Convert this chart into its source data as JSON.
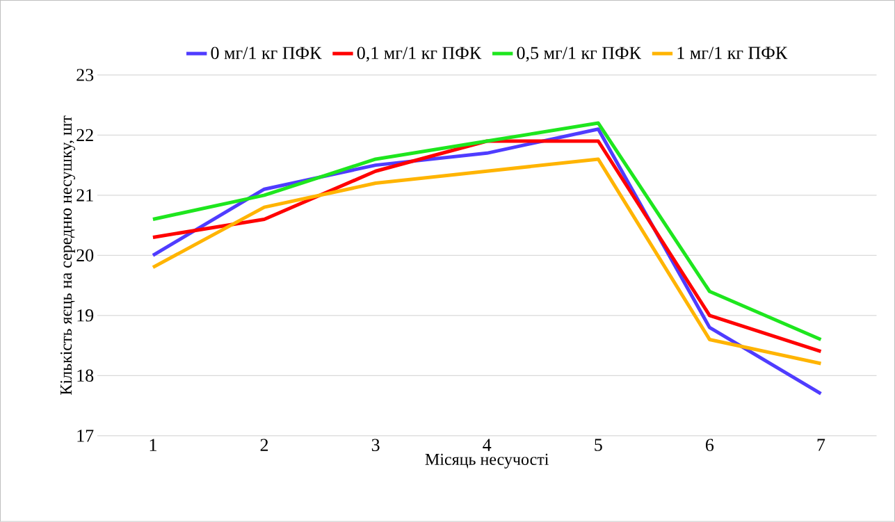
{
  "chart_data": {
    "type": "line",
    "xlabel": "Місяць несучості",
    "ylabel": "Кількість яєць на середню несушку, шт",
    "categories": [
      "1",
      "2",
      "3",
      "4",
      "5",
      "6",
      "7"
    ],
    "series": [
      {
        "name": "0 мг/1 кг ПФК",
        "color": "#4f3cff",
        "values": [
          20.0,
          21.1,
          21.5,
          21.7,
          22.1,
          18.8,
          17.7
        ]
      },
      {
        "name": "0,1 мг/1 кг ПФК",
        "color": "#ff0000",
        "values": [
          20.3,
          20.6,
          21.4,
          21.9,
          21.9,
          19.0,
          18.4
        ]
      },
      {
        "name": "0,5 мг/1 кг ПФК",
        "color": "#1ee61e",
        "values": [
          20.6,
          21.0,
          21.6,
          21.9,
          22.2,
          19.4,
          18.6
        ]
      },
      {
        "name": "1 мг/1 кг ПФК",
        "color": "#ffb400",
        "values": [
          19.8,
          20.8,
          21.2,
          21.4,
          21.6,
          18.6,
          18.2
        ]
      }
    ],
    "ylim": [
      17,
      23
    ],
    "yticks": [
      17,
      18,
      19,
      20,
      21,
      22,
      23
    ],
    "grid": "y",
    "legend": "top",
    "marker": "none",
    "line_style": "solid"
  }
}
